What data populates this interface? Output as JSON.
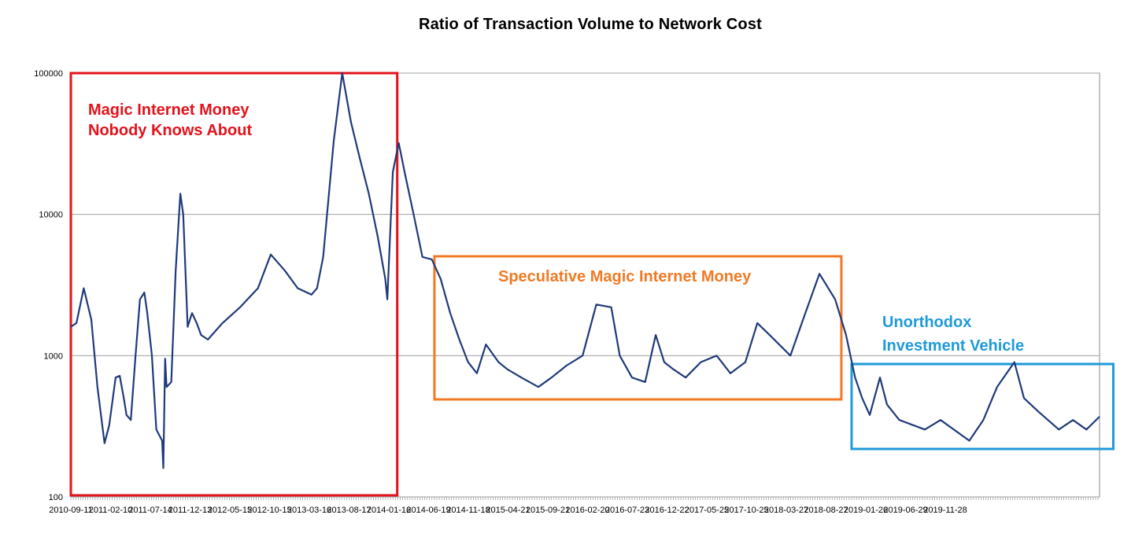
{
  "chart_data": {
    "type": "line",
    "title": "Ratio of Transaction Volume to Network Cost",
    "xlabel": "",
    "ylabel": "",
    "y_scale": "log",
    "ylim": [
      100,
      100000
    ],
    "y_ticks": [
      "100",
      "1000",
      "10000",
      "100000"
    ],
    "grid": "horizontal",
    "line_color": "#1f3a7a",
    "x_tick_labels": [
      "2010-09-11",
      "2011-02-10",
      "2011-07-14",
      "2011-12-13",
      "2012-05-15",
      "2012-10-15",
      "2013-03-16",
      "2013-08-17",
      "2014-01-16",
      "2014-06-19",
      "2014-11-18",
      "2015-04-21",
      "2015-09-21",
      "2016-02-20",
      "2016-07-23",
      "2016-12-22",
      "2017-05-25",
      "2017-10-25",
      "2018-03-27",
      "2018-08-27",
      "2019-01-26",
      "2019-06-29",
      "2019-11-28"
    ],
    "series": [
      {
        "x": [
          "2010-09-01",
          "2010-09-20",
          "2010-10-15",
          "2010-11-10",
          "2010-12-01",
          "2010-12-25",
          "2011-01-10",
          "2011-02-01",
          "2011-02-15",
          "2011-03-01",
          "2011-03-10",
          "2011-03-25",
          "2011-04-10",
          "2011-04-25",
          "2011-05-10",
          "2011-05-20",
          "2011-06-05",
          "2011-06-20",
          "2011-07-10",
          "2011-07-14",
          "2011-07-20",
          "2011-07-25",
          "2011-08-10",
          "2011-08-25",
          "2011-09-10",
          "2011-09-20",
          "2011-10-05",
          "2011-10-20",
          "2011-11-05",
          "2011-11-20",
          "2011-12-13",
          "2012-02-01",
          "2012-04-01",
          "2012-06-01",
          "2012-07-15",
          "2012-09-01",
          "2012-10-15",
          "2012-12-01",
          "2012-12-20",
          "2013-01-10",
          "2013-02-15",
          "2013-03-16",
          "2013-04-15",
          "2013-05-15",
          "2013-06-15",
          "2013-07-15",
          "2013-08-10",
          "2013-08-17",
          "2013-09-05",
          "2013-09-25",
          "2013-10-15",
          "2013-11-15",
          "2013-12-15",
          "2014-01-16",
          "2014-02-15",
          "2014-03-20",
          "2014-04-20",
          "2014-05-20",
          "2014-06-19",
          "2014-07-20",
          "2014-09-01",
          "2014-10-01",
          "2014-11-18",
          "2015-01-15",
          "2015-03-01",
          "2015-04-21",
          "2015-06-15",
          "2015-08-01",
          "2015-09-21",
          "2015-10-20",
          "2015-12-01",
          "2016-01-15",
          "2016-02-20",
          "2016-03-20",
          "2016-04-20",
          "2016-06-01",
          "2016-07-23",
          "2016-09-15",
          "2016-11-01",
          "2016-12-22",
          "2017-02-01",
          "2017-03-15",
          "2017-05-25",
          "2017-07-15",
          "2017-09-01",
          "2017-10-25",
          "2017-12-01",
          "2018-01-01",
          "2018-01-25",
          "2018-02-20",
          "2018-03-27",
          "2018-04-20",
          "2018-06-01",
          "2018-08-27",
          "2018-10-20",
          "2019-01-26",
          "2019-03-15",
          "2019-05-01",
          "2019-06-29",
          "2019-08-01",
          "2019-09-20",
          "2019-11-28",
          "2020-01-15",
          "2020-03-01",
          "2020-04-15"
        ],
        "y": [
          1600,
          1700,
          3000,
          1800,
          600,
          240,
          320,
          700,
          720,
          500,
          380,
          350,
          1000,
          2500,
          2800,
          2000,
          1000,
          300,
          250,
          160,
          950,
          600,
          650,
          4000,
          14000,
          10000,
          1600,
          2000,
          1700,
          1400,
          1300,
          1700,
          2200,
          3000,
          5200,
          4000,
          3000,
          2700,
          3000,
          5000,
          33000,
          100000,
          45000,
          25000,
          14000,
          7000,
          3500,
          2500,
          20000,
          32000,
          20000,
          10000,
          5000,
          4800,
          3500,
          2000,
          1300,
          900,
          750,
          1200,
          900,
          800,
          700,
          600,
          700,
          850,
          1000,
          2300,
          2200,
          1000,
          700,
          650,
          1400,
          900,
          800,
          700,
          900,
          1000,
          750,
          900,
          1700,
          1400,
          1000,
          2000,
          3800,
          2500,
          1400,
          700,
          500,
          380,
          700,
          450,
          350,
          300,
          350,
          250,
          350,
          600,
          900,
          500,
          400,
          300,
          350,
          300,
          370
        ]
      }
    ],
    "annotations": [
      {
        "text_lines": [
          "Magic Internet Money",
          "Nobody Knows About"
        ],
        "color": "#e2121b",
        "x_range": [
          "2010-09-01",
          "2013-09-20"
        ]
      },
      {
        "text_lines": [
          "Speculative Magic Internet Money"
        ],
        "color": "#f07a24",
        "x_range": [
          "2014-01-25",
          "2017-11-15"
        ]
      },
      {
        "text_lines": [
          "Unorthodox",
          "Investment Vehicle"
        ],
        "color": "#1e9ad8",
        "x_range": [
          "2017-12-20",
          "2020-06-01"
        ]
      }
    ]
  }
}
